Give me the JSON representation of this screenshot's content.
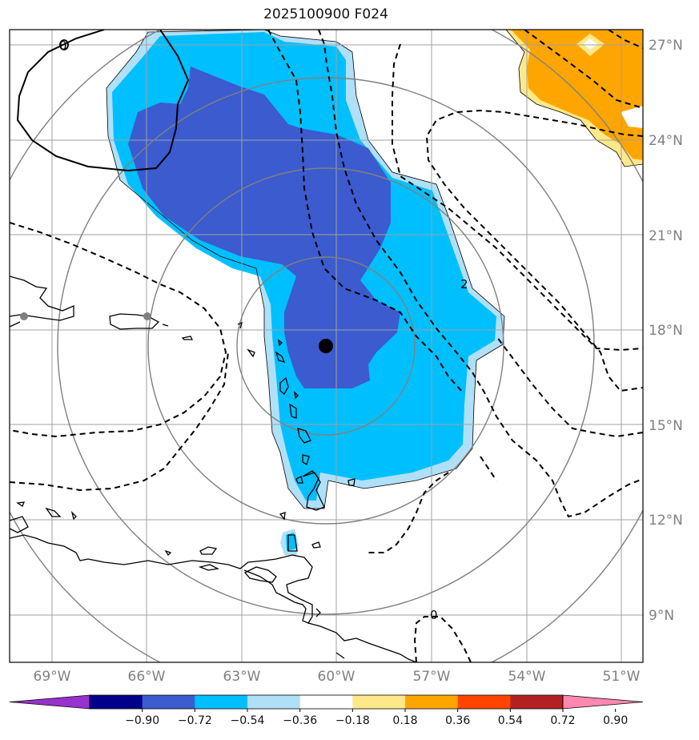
{
  "title": "2025100900 F024",
  "map": {
    "lon_range": [
      -70,
      -50.5
    ],
    "lat_range": [
      7.5,
      27.5
    ],
    "center_marker": {
      "lon": -60.0,
      "lat": 17.5
    },
    "gray_points": [
      {
        "lon": -69.1,
        "lat": 18.5
      },
      {
        "lon": -65.5,
        "lat": 18.5
      }
    ],
    "range_ring_radii_deg": [
      2.8,
      5.5,
      8.3,
      11.0
    ],
    "lat_ticks": [
      {
        "value": 9,
        "label": "9°N"
      },
      {
        "value": 12,
        "label": "12°N"
      },
      {
        "value": 15,
        "label": "15°N"
      },
      {
        "value": 18,
        "label": "18°N"
      },
      {
        "value": 21,
        "label": "21°N"
      },
      {
        "value": 24,
        "label": "24°N"
      },
      {
        "value": 27,
        "label": "27°N"
      }
    ],
    "lon_ticks": [
      {
        "value": -69,
        "label": "69°W"
      },
      {
        "value": -66,
        "label": "66°W"
      },
      {
        "value": -63,
        "label": "63°W"
      },
      {
        "value": -60,
        "label": "60°W"
      },
      {
        "value": -57,
        "label": "57°W"
      },
      {
        "value": -54,
        "label": "54°W"
      },
      {
        "value": -51,
        "label": "51°W"
      }
    ],
    "contour_labels": [
      {
        "text": "0",
        "lon": -68.4,
        "lat": 26.4
      },
      {
        "text": "2",
        "lon": -55.9,
        "lat": 19.9
      },
      {
        "text": "0",
        "lon": -56.8,
        "lat": 8.9
      }
    ]
  },
  "colorbar": {
    "colors": [
      "#9932cc",
      "#00008b",
      "#3b5bcf",
      "#00bfff",
      "#b0e0f8",
      "#ffffff",
      "#ffe88a",
      "#ffa500",
      "#ff4500",
      "#b22222",
      "#ff88b0"
    ],
    "tick_labels": [
      "−0.90",
      "−0.72",
      "−0.54",
      "−0.36",
      "−0.18",
      "0.18",
      "0.36",
      "0.54",
      "0.72",
      "0.90"
    ]
  }
}
